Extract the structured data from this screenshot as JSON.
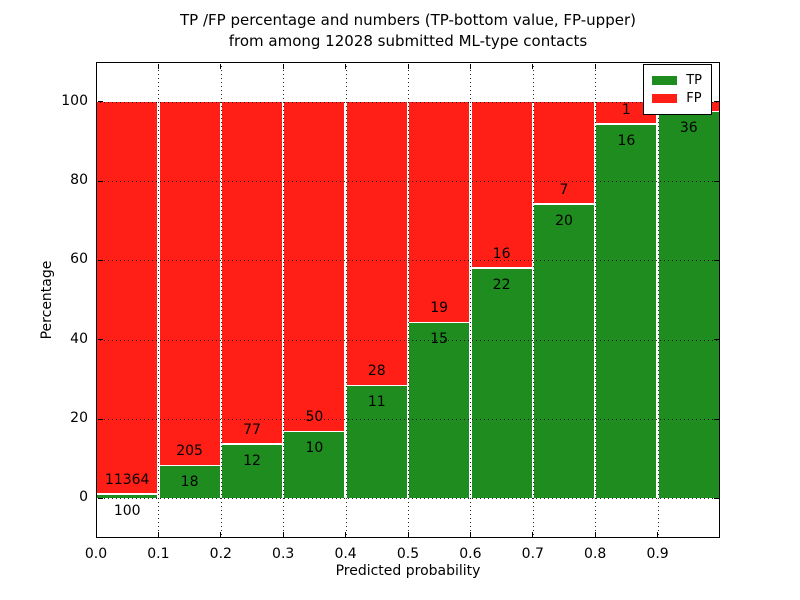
{
  "chart_data": {
    "type": "bar",
    "stacked": true,
    "title_line1": "TP /FP percentage and numbers (TP-bottom value, FP-upper)",
    "title_line2": "from among 12028 submitted ML-type contacts",
    "xlabel": "Predicted probability",
    "ylabel": "Percentage",
    "xlim": [
      0.0,
      1.0
    ],
    "ylim": [
      -10,
      110
    ],
    "x_ticks": [
      "0.0",
      "0.1",
      "0.2",
      "0.3",
      "0.4",
      "0.5",
      "0.6",
      "0.7",
      "0.8",
      "0.9"
    ],
    "y_ticks": [
      0,
      20,
      40,
      60,
      80,
      100
    ],
    "grid": "dotted",
    "legend": {
      "position": "upper right",
      "entries": [
        {
          "label": "TP",
          "color": "#1e8c1e"
        },
        {
          "label": "FP",
          "color": "#ff1f16"
        }
      ]
    },
    "bins": [
      {
        "x0": 0.0,
        "x1": 0.1,
        "tp": 100,
        "fp": 11364,
        "tp_pct": 0.87
      },
      {
        "x0": 0.1,
        "x1": 0.2,
        "tp": 18,
        "fp": 205,
        "tp_pct": 8.07
      },
      {
        "x0": 0.2,
        "x1": 0.3,
        "tp": 12,
        "fp": 77,
        "tp_pct": 13.48
      },
      {
        "x0": 0.3,
        "x1": 0.4,
        "tp": 10,
        "fp": 50,
        "tp_pct": 16.67
      },
      {
        "x0": 0.4,
        "x1": 0.5,
        "tp": 11,
        "fp": 28,
        "tp_pct": 28.21
      },
      {
        "x0": 0.5,
        "x1": 0.6,
        "tp": 15,
        "fp": 19,
        "tp_pct": 44.12
      },
      {
        "x0": 0.6,
        "x1": 0.7,
        "tp": 22,
        "fp": 16,
        "tp_pct": 57.89
      },
      {
        "x0": 0.7,
        "x1": 0.8,
        "tp": 20,
        "fp": 7,
        "tp_pct": 74.07
      },
      {
        "x0": 0.8,
        "x1": 0.9,
        "tp": 16,
        "fp": 1,
        "tp_pct": 94.12
      },
      {
        "x0": 0.9,
        "x1": 1.0,
        "tp": 36,
        "fp": null,
        "tp_pct": 97.3
      }
    ],
    "colors": {
      "tp": "#1e8c1e",
      "fp": "#ff1f16",
      "grid": "#000000"
    }
  }
}
